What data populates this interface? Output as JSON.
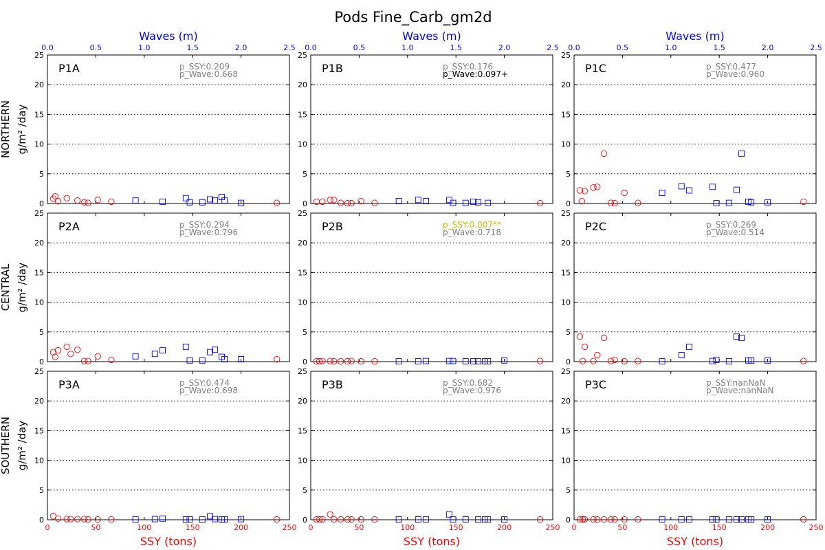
{
  "figure": {
    "title": "Pods Fine_Carb_gm2d",
    "top_axis_label": "Waves (m)",
    "bottom_axis_label": "SSY (tons)",
    "row_labels": [
      "NORTHERN",
      "CENTRAL",
      "SOUTHERN"
    ],
    "y_unit_label": "g/m² /day",
    "colors": {
      "ssy": "#ff0000",
      "wave": "#0000ff",
      "significant": "#bfbf00",
      "marginal": "#000000",
      "nonsignificant": "#808080"
    }
  },
  "chart_data": {
    "type": "scatter",
    "x_ssy_range": [
      0,
      250
    ],
    "x_wave_range": [
      0,
      2.5
    ],
    "ylim": [
      0,
      25
    ],
    "x_ssy_ticks": [
      "0",
      "50",
      "100",
      "150",
      "200",
      "250"
    ],
    "x_wave_ticks": [
      "0.0",
      "0.5",
      "1.0",
      "1.5",
      "2.0",
      "2.5"
    ],
    "y_ticks": [
      "0",
      "5",
      "10",
      "15",
      "20",
      "25"
    ],
    "grid": "horizontal dotted",
    "series_symbols": {
      "ssy": "red open circle",
      "wave": "blue open square"
    },
    "panels": [
      {
        "id": "P1A",
        "p_ssy": "p_SSY:0.209",
        "p_wave": "p_Wave:0.668",
        "p_ssy_color": "#808080",
        "p_wave_color": "#808080",
        "ssy": [
          [
            6,
            0.8
          ],
          [
            8,
            1.2
          ],
          [
            11,
            0.4
          ],
          [
            20,
            0.9
          ],
          [
            31,
            0.5
          ],
          [
            38,
            0.2
          ],
          [
            42,
            0.1
          ],
          [
            52,
            0.6
          ],
          [
            66,
            0.3
          ],
          [
            237,
            0.1
          ]
        ],
        "wave": [
          [
            0.91,
            0.5
          ],
          [
            1.19,
            0.3
          ],
          [
            1.43,
            0.9
          ],
          [
            1.47,
            0.2
          ],
          [
            1.6,
            0.2
          ],
          [
            1.68,
            0.7
          ],
          [
            1.73,
            0.5
          ],
          [
            1.8,
            1.1
          ],
          [
            1.83,
            0.5
          ],
          [
            2.0,
            0.1
          ]
        ]
      },
      {
        "id": "P1B",
        "p_ssy": "p_SSY:0.176",
        "p_wave": "p_Wave:0.097+",
        "p_ssy_color": "#808080",
        "p_wave_color": "#000000",
        "ssy": [
          [
            6,
            0.3
          ],
          [
            12,
            0.3
          ],
          [
            20,
            0.6
          ],
          [
            24,
            0.6
          ],
          [
            31,
            0.1
          ],
          [
            38,
            0.05
          ],
          [
            42,
            0.05
          ],
          [
            52,
            0.4
          ],
          [
            66,
            0.1
          ],
          [
            237,
            0.05
          ]
        ],
        "wave": [
          [
            0.91,
            0.4
          ],
          [
            1.11,
            0.6
          ],
          [
            1.19,
            0.4
          ],
          [
            1.43,
            0.6
          ],
          [
            1.47,
            0.1
          ],
          [
            1.6,
            0.1
          ],
          [
            1.68,
            0.3
          ],
          [
            1.73,
            0.2
          ],
          [
            1.83,
            0.1
          ]
        ]
      },
      {
        "id": "P1C",
        "p_ssy": "p_SSY:0.477",
        "p_wave": "p_Wave:0.960",
        "p_ssy_color": "#808080",
        "p_wave_color": "#808080",
        "ssy": [
          [
            6,
            2.2
          ],
          [
            8,
            0.4
          ],
          [
            11,
            2.1
          ],
          [
            20,
            2.7
          ],
          [
            24,
            2.8
          ],
          [
            31,
            8.4
          ],
          [
            38,
            0.1
          ],
          [
            42,
            0.05
          ],
          [
            52,
            1.8
          ],
          [
            66,
            0.1
          ],
          [
            237,
            0.3
          ]
        ],
        "wave": [
          [
            0.91,
            1.8
          ],
          [
            1.11,
            2.9
          ],
          [
            1.19,
            2.2
          ],
          [
            1.43,
            2.8
          ],
          [
            1.47,
            0.05
          ],
          [
            1.6,
            0.1
          ],
          [
            1.68,
            2.3
          ],
          [
            1.73,
            8.4
          ],
          [
            1.8,
            0.3
          ],
          [
            1.83,
            0.2
          ],
          [
            2.0,
            0.2
          ]
        ]
      },
      {
        "id": "P2A",
        "p_ssy": "p_SSY:0.294",
        "p_wave": "p_Wave:0.796",
        "p_ssy_color": "#808080",
        "p_wave_color": "#808080",
        "ssy": [
          [
            6,
            1.6
          ],
          [
            8,
            0.8
          ],
          [
            11,
            1.9
          ],
          [
            20,
            2.5
          ],
          [
            24,
            1.3
          ],
          [
            31,
            2.0
          ],
          [
            38,
            0.1
          ],
          [
            42,
            0.1
          ],
          [
            52,
            0.9
          ],
          [
            66,
            0.3
          ],
          [
            237,
            0.4
          ]
        ],
        "wave": [
          [
            0.91,
            0.9
          ],
          [
            1.11,
            1.3
          ],
          [
            1.19,
            1.9
          ],
          [
            1.43,
            2.5
          ],
          [
            1.47,
            0.2
          ],
          [
            1.6,
            0.2
          ],
          [
            1.68,
            1.6
          ],
          [
            1.73,
            2.0
          ],
          [
            1.8,
            0.8
          ],
          [
            1.83,
            0.4
          ],
          [
            2.0,
            0.4
          ]
        ]
      },
      {
        "id": "P2B",
        "p_ssy": "p_SSY:0.007**",
        "p_wave": "p_Wave:0.718",
        "p_ssy_color": "#bfbf00",
        "p_wave_color": "#808080",
        "ssy": [
          [
            6,
            0.05
          ],
          [
            9,
            0.05
          ],
          [
            12,
            0.1
          ],
          [
            20,
            0.1
          ],
          [
            24,
            0.05
          ],
          [
            31,
            0.05
          ],
          [
            38,
            0.05
          ],
          [
            42,
            0.1
          ],
          [
            52,
            0.05
          ],
          [
            66,
            0.05
          ],
          [
            237,
            0.1
          ]
        ],
        "wave": [
          [
            0.91,
            0.05
          ],
          [
            1.11,
            0.05
          ],
          [
            1.19,
            0.1
          ],
          [
            1.43,
            0.1
          ],
          [
            1.47,
            0.1
          ],
          [
            1.6,
            0.05
          ],
          [
            1.68,
            0.05
          ],
          [
            1.73,
            0.05
          ],
          [
            1.8,
            0.05
          ],
          [
            1.83,
            0.05
          ],
          [
            2.0,
            0.2
          ]
        ]
      },
      {
        "id": "P2C",
        "p_ssy": "p_SSY:0.269",
        "p_wave": "p_Wave:0.514",
        "p_ssy_color": "#808080",
        "p_wave_color": "#808080",
        "ssy": [
          [
            6,
            4.2
          ],
          [
            9,
            0.1
          ],
          [
            11,
            2.5
          ],
          [
            20,
            0.1
          ],
          [
            24,
            1.1
          ],
          [
            31,
            4.0
          ],
          [
            38,
            0.1
          ],
          [
            42,
            0.3
          ],
          [
            52,
            0.05
          ],
          [
            66,
            0.1
          ],
          [
            237,
            0.1
          ]
        ],
        "wave": [
          [
            0.91,
            0.05
          ],
          [
            1.11,
            1.1
          ],
          [
            1.19,
            2.5
          ],
          [
            1.43,
            0.1
          ],
          [
            1.47,
            0.3
          ],
          [
            1.6,
            0.05
          ],
          [
            1.68,
            4.2
          ],
          [
            1.73,
            4.0
          ],
          [
            1.8,
            0.2
          ],
          [
            1.83,
            0.2
          ],
          [
            2.0,
            0.2
          ]
        ]
      },
      {
        "id": "P3A",
        "p_ssy": "p_SSY:0.474",
        "p_wave": "p_Wave:0.698",
        "p_ssy_color": "#808080",
        "p_wave_color": "#808080",
        "ssy": [
          [
            6,
            0.6
          ],
          [
            11,
            0.2
          ],
          [
            20,
            0.1
          ],
          [
            24,
            0.1
          ],
          [
            31,
            0.1
          ],
          [
            38,
            0.1
          ],
          [
            42,
            0.05
          ],
          [
            52,
            0.05
          ],
          [
            66,
            0.05
          ],
          [
            237,
            0.05
          ]
        ],
        "wave": [
          [
            0.91,
            0.05
          ],
          [
            1.11,
            0.1
          ],
          [
            1.19,
            0.2
          ],
          [
            1.43,
            0.05
          ],
          [
            1.47,
            0.05
          ],
          [
            1.6,
            0.05
          ],
          [
            1.68,
            0.6
          ],
          [
            1.73,
            0.1
          ],
          [
            1.8,
            0.05
          ],
          [
            1.83,
            0.05
          ],
          [
            2.0,
            0.1
          ]
        ]
      },
      {
        "id": "P3B",
        "p_ssy": "p_SSY:0.682",
        "p_wave": "p_Wave:0.976",
        "p_ssy_color": "#808080",
        "p_wave_color": "#808080",
        "ssy": [
          [
            6,
            0.05
          ],
          [
            9,
            0.05
          ],
          [
            12,
            0.05
          ],
          [
            20,
            0.9
          ],
          [
            24,
            0.05
          ],
          [
            31,
            0.05
          ],
          [
            38,
            0.05
          ],
          [
            42,
            0.05
          ],
          [
            52,
            0.05
          ],
          [
            66,
            0.05
          ],
          [
            237,
            0.05
          ]
        ],
        "wave": [
          [
            0.91,
            0.05
          ],
          [
            1.11,
            0.05
          ],
          [
            1.19,
            0.05
          ],
          [
            1.43,
            0.9
          ],
          [
            1.47,
            0.05
          ],
          [
            1.6,
            0.05
          ],
          [
            1.73,
            0.05
          ],
          [
            1.8,
            0.05
          ],
          [
            1.83,
            0.05
          ],
          [
            2.0,
            0.05
          ]
        ]
      },
      {
        "id": "P3C",
        "p_ssy": "p_SSY:nanNaN",
        "p_wave": "p_Wave:nanNaN",
        "p_ssy_color": "#808080",
        "p_wave_color": "#808080",
        "ssy": [
          [
            6,
            0.05
          ],
          [
            9,
            0.05
          ],
          [
            11,
            0.05
          ],
          [
            20,
            0.05
          ],
          [
            24,
            0.05
          ],
          [
            31,
            0.05
          ],
          [
            38,
            0.05
          ],
          [
            42,
            0.05
          ],
          [
            52,
            0.05
          ],
          [
            66,
            0.05
          ],
          [
            237,
            0.05
          ]
        ],
        "wave": [
          [
            0.91,
            0.05
          ],
          [
            1.11,
            0.05
          ],
          [
            1.19,
            0.05
          ],
          [
            1.43,
            0.05
          ],
          [
            1.47,
            0.05
          ],
          [
            1.6,
            0.05
          ],
          [
            1.68,
            0.05
          ],
          [
            1.73,
            0.05
          ],
          [
            1.8,
            0.05
          ],
          [
            1.83,
            0.05
          ],
          [
            2.0,
            0.05
          ]
        ]
      }
    ]
  }
}
